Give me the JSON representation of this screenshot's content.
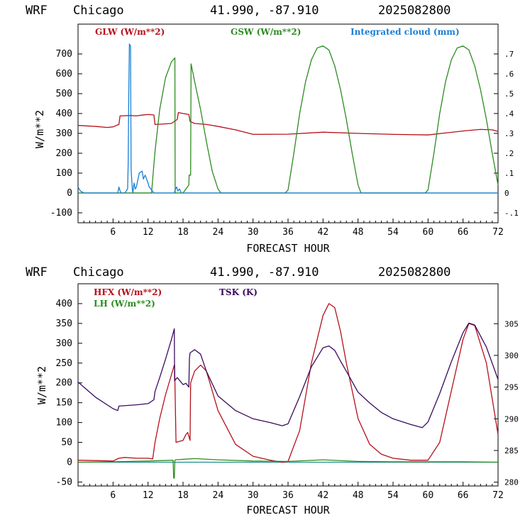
{
  "colors": {
    "red": "#b5101a",
    "green": "#2e8b22",
    "blue": "#1a7fd4",
    "purple": "#3a0b5e",
    "teal": "#1d9090"
  },
  "chart_data": [
    {
      "type": "line",
      "header": {
        "model": "WRF",
        "site": "Chicago",
        "coords": "41.990, -87.910",
        "run": "2025082800"
      },
      "xlabel": "FORECAST HOUR",
      "ylabel": "W/m**2",
      "xlim": [
        0,
        72
      ],
      "ylim": [
        -150,
        850
      ],
      "xticks": [
        6,
        12,
        18,
        24,
        30,
        36,
        42,
        48,
        54,
        60,
        66,
        72
      ],
      "yticks": [
        -100,
        0,
        100,
        200,
        300,
        400,
        500,
        600,
        700
      ],
      "y2lim": [
        -0.15,
        0.85
      ],
      "y2ticks": [
        -0.1,
        0,
        0.1,
        0.2,
        0.3,
        0.4,
        0.5,
        0.6,
        0.7
      ],
      "y2ticklabels": [
        "-.1",
        "0",
        ".1",
        ".2",
        ".3",
        ".4",
        ".5",
        ".6",
        ".7"
      ],
      "series": [
        {
          "name": "GLW (W/m**2)",
          "color": "#b5101a",
          "axis": "left",
          "x": [
            0,
            3,
            5,
            6,
            7,
            7.2,
            9,
            10,
            11,
            12,
            13,
            13.2,
            15,
            16,
            17,
            17.2,
            18,
            19,
            19.2,
            20,
            22,
            24,
            27,
            30,
            36,
            42,
            48,
            54,
            60,
            66,
            69,
            71,
            72
          ],
          "y": [
            340,
            335,
            330,
            333,
            345,
            388,
            390,
            388,
            392,
            395,
            393,
            345,
            348,
            350,
            370,
            405,
            400,
            395,
            360,
            350,
            345,
            335,
            318,
            295,
            296,
            306,
            300,
            295,
            292,
            312,
            320,
            318,
            310
          ]
        },
        {
          "name": "GSW (W/m**2)",
          "color": "#2e8b22",
          "axis": "left",
          "x": [
            0,
            11.4,
            12.6,
            13.2,
            14,
            15,
            16,
            16.6,
            16.62,
            16.65,
            16.9,
            18,
            19,
            19.05,
            19.3,
            19.38,
            19.45,
            20,
            21,
            22,
            23,
            24,
            24.5,
            35.5,
            36,
            37,
            38,
            39,
            40,
            41,
            42,
            43,
            44,
            45,
            46,
            47,
            48,
            48.5,
            59.5,
            60,
            61,
            62,
            63,
            64,
            65,
            66,
            67,
            68,
            69,
            70,
            71,
            72
          ],
          "y": [
            0,
            0,
            0,
            210,
            420,
            580,
            660,
            680,
            300,
            0,
            0,
            0,
            40,
            90,
            90,
            650,
            640,
            560,
            420,
            260,
            110,
            20,
            0,
            0,
            15,
            200,
            400,
            560,
            670,
            730,
            740,
            720,
            640,
            520,
            370,
            200,
            40,
            0,
            0,
            15,
            200,
            400,
            560,
            670,
            730,
            740,
            720,
            640,
            520,
            370,
            200,
            40
          ]
        },
        {
          "name": "Integrated cloud (mm)",
          "color": "#1a7fd4",
          "axis": "right",
          "x": [
            0,
            0.4,
            1,
            6.8,
            7,
            7.2,
            7.4,
            8,
            8.5,
            8.6,
            8.7,
            8.8,
            9,
            9.1,
            9.3,
            9.4,
            9.6,
            9.8,
            10,
            10.5,
            11,
            11.2,
            11.5,
            12,
            12.2,
            12.5,
            13,
            16.5,
            16.7,
            16.9,
            17.1,
            17.4,
            17.7,
            18,
            72
          ],
          "y": [
            0.03,
            0.01,
            0,
            0,
            0.03,
            0.01,
            0,
            0,
            0.02,
            0.15,
            0.5,
            0.75,
            0.74,
            0.12,
            0.02,
            0,
            0.05,
            0.02,
            0.03,
            0.1,
            0.11,
            0.07,
            0.09,
            0.05,
            0.03,
            0.02,
            0,
            0,
            0.02,
            0.03,
            0.01,
            0.02,
            0,
            0,
            0
          ]
        }
      ]
    },
    {
      "type": "line",
      "header": {
        "model": "WRF",
        "site": "Chicago",
        "coords": "41.990, -87.910",
        "run": "2025082800"
      },
      "xlabel": "FORECAST HOUR",
      "ylabel": "W/m**2",
      "xlim": [
        0,
        72
      ],
      "ylim": [
        -60,
        450
      ],
      "xticks": [
        6,
        12,
        18,
        24,
        30,
        36,
        42,
        48,
        54,
        60,
        66,
        72
      ],
      "yticks": [
        -50,
        0,
        50,
        100,
        150,
        200,
        250,
        300,
        350,
        400
      ],
      "y2lim": [
        279.4,
        311.3
      ],
      "y2ticks": [
        280,
        285,
        290,
        295,
        300,
        305
      ],
      "y2ticklabels": [
        "280",
        "285",
        "290",
        "295",
        "300",
        "305"
      ],
      "series": [
        {
          "name": "HFX (W/m**2)",
          "color": "#b5101a",
          "axis": "left",
          "x": [
            0,
            3,
            6,
            7,
            8,
            10,
            12,
            12.8,
            13.2,
            14,
            15,
            16,
            16.5,
            16.55,
            16.8,
            18,
            18.5,
            18.8,
            19.2,
            19.3,
            20,
            21,
            22,
            24,
            27,
            30,
            33,
            35,
            36,
            38,
            40,
            42,
            43,
            44,
            45,
            46,
            48,
            50,
            52,
            54,
            57,
            59,
            60,
            62,
            64,
            66,
            67,
            68,
            70,
            71,
            72
          ],
          "y": [
            5,
            4,
            3,
            10,
            12,
            10,
            10,
            8,
            50,
            110,
            170,
            220,
            245,
            245,
            50,
            55,
            70,
            75,
            55,
            200,
            230,
            245,
            230,
            130,
            45,
            15,
            5,
            0,
            2,
            80,
            250,
            370,
            400,
            390,
            330,
            250,
            110,
            45,
            20,
            10,
            5,
            5,
            5,
            50,
            180,
            310,
            350,
            345,
            250,
            160,
            70
          ]
        },
        {
          "name": "LH (W/m**2)",
          "color": "#2e8b22",
          "axis": "left",
          "x": [
            0,
            6,
            12,
            16.3,
            16.4,
            16.5,
            16.6,
            16.7,
            20,
            24,
            30,
            36,
            42,
            48,
            54,
            60,
            66,
            72
          ],
          "y": [
            0,
            1,
            3,
            5,
            -40,
            -40,
            5,
            6,
            9,
            6,
            3,
            2,
            6,
            2,
            1,
            1,
            1,
            0
          ]
        },
        {
          "name": "TSK (K)",
          "color": "#3a0b5e",
          "axis": "right",
          "x": [
            0,
            3,
            6,
            6.8,
            7,
            10,
            12,
            13,
            13.2,
            14,
            15,
            16,
            16.5,
            16.55,
            17,
            18,
            18.5,
            19,
            19.1,
            19.2,
            20,
            21,
            22,
            24,
            27,
            30,
            33,
            35,
            36,
            38,
            40,
            42,
            43,
            44,
            45,
            46,
            48,
            50,
            52,
            54,
            57,
            59,
            60,
            62,
            64,
            66,
            67,
            68,
            70,
            72
          ],
          "y": [
            295.8,
            293.4,
            291.6,
            291.3,
            292,
            292.2,
            292.4,
            293,
            294.3,
            296.5,
            299.4,
            302.5,
            304.2,
            296,
            296.5,
            295.4,
            295.6,
            295,
            299.5,
            300.4,
            300.9,
            300.2,
            297.5,
            293.6,
            291.3,
            290,
            289.4,
            288.9,
            289.2,
            293.5,
            298.2,
            301.2,
            301.5,
            300.8,
            299.1,
            297.5,
            294.2,
            292.5,
            291,
            290,
            289.1,
            288.6,
            289.5,
            294,
            299,
            303.6,
            305.1,
            304.8,
            301.3,
            296.2
          ]
        }
      ]
    }
  ]
}
